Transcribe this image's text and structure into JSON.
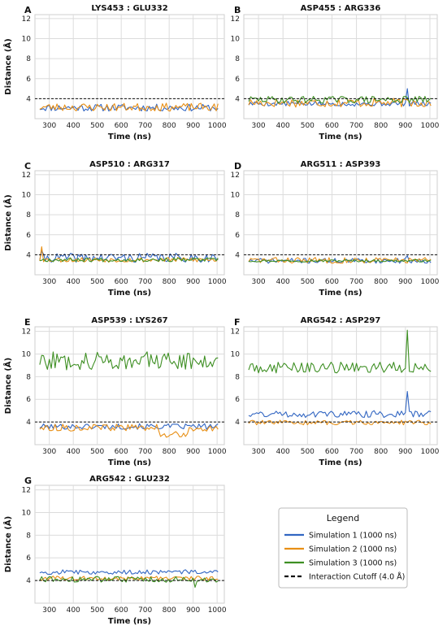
{
  "colors": {
    "sim1": "#3266c2",
    "sim2": "#e88f15",
    "sim3": "#3e8f23",
    "cutoff": "#111111"
  },
  "legend": {
    "title": "Legend",
    "items": [
      {
        "label": "Simulation 1 (1000 ns)",
        "color": "#3266c2",
        "style": "solid"
      },
      {
        "label": "Simulation 2 (1000 ns)",
        "color": "#e88f15",
        "style": "solid"
      },
      {
        "label": "Simulation 3 (1000 ns)",
        "color": "#3e8f23",
        "style": "solid"
      },
      {
        "label": "Interaction Cutoff (4.0 Å)",
        "color": "#111111",
        "style": "dashed"
      }
    ]
  },
  "chart_data": [
    {
      "panel": "A",
      "title": "LYS453 : GLU332",
      "type": "line",
      "xlabel": "Time (ns)",
      "ylabel": "Distance (Å)",
      "xlim": [
        240,
        1030
      ],
      "ylim": [
        2,
        12.4
      ],
      "xticks": [
        300,
        400,
        500,
        600,
        700,
        800,
        900,
        1000
      ],
      "yticks": [
        4,
        6,
        8,
        10,
        12
      ],
      "cutoff": 4.0,
      "grid": true,
      "series": [
        {
          "name": "Simulation 1 (1000 ns)",
          "base": 3.1,
          "amp": 0.35,
          "seed": 11,
          "spikes": []
        },
        {
          "name": "Simulation 2 (1000 ns)",
          "base": 3.15,
          "amp": 0.4,
          "seed": 23,
          "spikes": []
        },
        {
          "name": "Simulation 3 (1000 ns)",
          "base": 3.2,
          "amp": 0.15,
          "seed": 37,
          "spikes": [],
          "hidden": true
        }
      ]
    },
    {
      "panel": "B",
      "title": "ASP455 : ARG336",
      "type": "line",
      "xlabel": "Time (ns)",
      "ylabel": "",
      "xlim": [
        240,
        1030
      ],
      "ylim": [
        2,
        12.4
      ],
      "xticks": [
        300,
        400,
        500,
        600,
        700,
        800,
        900,
        1000
      ],
      "yticks": [
        4,
        6,
        8,
        10,
        12
      ],
      "cutoff": 4.0,
      "grid": true,
      "series": [
        {
          "name": "Simulation 1 (1000 ns)",
          "base": 3.5,
          "amp": 0.25,
          "seed": 5,
          "spikes": [
            [
              905,
              5.0
            ]
          ]
        },
        {
          "name": "Simulation 2 (1000 ns)",
          "base": 3.6,
          "amp": 0.45,
          "seed": 17,
          "spikes": [
            [
              960,
              4.6
            ]
          ]
        },
        {
          "name": "Simulation 3 (1000 ns)",
          "base": 3.9,
          "amp": 0.35,
          "seed": 29,
          "spikes": []
        }
      ]
    },
    {
      "panel": "C",
      "title": "ASP510 : ARG317",
      "type": "line",
      "xlabel": "Time (ns)",
      "ylabel": "Distance (Å)",
      "xlim": [
        240,
        1030
      ],
      "ylim": [
        2,
        12.4
      ],
      "xticks": [
        300,
        400,
        500,
        600,
        700,
        800,
        900,
        1000
      ],
      "yticks": [
        4,
        6,
        8,
        10,
        12
      ],
      "cutoff": 4.0,
      "grid": true,
      "series": [
        {
          "name": "Simulation 1 (1000 ns)",
          "base": 3.7,
          "amp": 0.45,
          "seed": 41,
          "spikes": [
            [
              270,
              4.4
            ]
          ]
        },
        {
          "name": "Simulation 2 (1000 ns)",
          "base": 3.5,
          "amp": 0.25,
          "seed": 53,
          "spikes": [
            [
              265,
              4.8
            ]
          ]
        },
        {
          "name": "Simulation 3 (1000 ns)",
          "base": 3.5,
          "amp": 0.2,
          "seed": 67,
          "spikes": []
        }
      ]
    },
    {
      "panel": "D",
      "title": "ARG511 : ASP393",
      "type": "line",
      "xlabel": "Time (ns)",
      "ylabel": "",
      "xlim": [
        240,
        1030
      ],
      "ylim": [
        2,
        12.4
      ],
      "xticks": [
        300,
        400,
        500,
        600,
        700,
        800,
        900,
        1000
      ],
      "yticks": [
        4,
        6,
        8,
        10,
        12
      ],
      "cutoff": 4.0,
      "grid": true,
      "series": [
        {
          "name": "Simulation 1 (1000 ns)",
          "base": 3.4,
          "amp": 0.25,
          "seed": 71,
          "spikes": [
            [
              280,
              4.0
            ],
            [
              905,
              3.9
            ]
          ]
        },
        {
          "name": "Simulation 2 (1000 ns)",
          "base": 3.45,
          "amp": 0.3,
          "seed": 83,
          "spikes": []
        },
        {
          "name": "Simulation 3 (1000 ns)",
          "base": 3.4,
          "amp": 0.12,
          "seed": 97,
          "spikes": []
        }
      ]
    },
    {
      "panel": "E",
      "title": "ASP539 : LYS267",
      "type": "line",
      "xlabel": "Time (ns)",
      "ylabel": "Distance (Å)",
      "xlim": [
        240,
        1030
      ],
      "ylim": [
        2,
        12.4
      ],
      "xticks": [
        300,
        400,
        500,
        600,
        700,
        800,
        900,
        1000
      ],
      "yticks": [
        4,
        6,
        8,
        10,
        12
      ],
      "cutoff": 4.0,
      "grid": true,
      "series": [
        {
          "name": "Simulation 1 (1000 ns)",
          "base": 3.6,
          "amp": 0.25,
          "seed": 101,
          "spikes": []
        },
        {
          "name": "Simulation 2 (1000 ns)",
          "base": 3.5,
          "amp": 0.3,
          "seed": 113,
          "spikes": [],
          "dip": [
            [
              760,
              880,
              2.9
            ]
          ]
        },
        {
          "name": "Simulation 3 (1000 ns)",
          "base": 9.4,
          "amp": 0.8,
          "seed": 127,
          "spikes": []
        }
      ]
    },
    {
      "panel": "F",
      "title": "ARG542 : ASP297",
      "type": "line",
      "xlabel": "Time (ns)",
      "ylabel": "",
      "xlim": [
        240,
        1030
      ],
      "ylim": [
        2,
        12.4
      ],
      "xticks": [
        300,
        400,
        500,
        600,
        700,
        800,
        900,
        1000
      ],
      "yticks": [
        4,
        6,
        8,
        10,
        12
      ],
      "cutoff": 4.0,
      "grid": true,
      "series": [
        {
          "name": "Simulation 1 (1000 ns)",
          "base": 4.7,
          "amp": 0.3,
          "seed": 131,
          "spikes": [
            [
              360,
              8.1
            ],
            [
              905,
              6.7
            ]
          ]
        },
        {
          "name": "Simulation 2 (1000 ns)",
          "base": 3.95,
          "amp": 0.2,
          "seed": 139,
          "spikes": []
        },
        {
          "name": "Simulation 3 (1000 ns)",
          "base": 8.8,
          "amp": 0.5,
          "seed": 149,
          "spikes": [
            [
              908,
              12.1
            ]
          ]
        }
      ]
    },
    {
      "panel": "G",
      "title": "ARG542 : GLU232",
      "type": "line",
      "xlabel": "Time (ns)",
      "ylabel": "Distance (Å)",
      "xlim": [
        240,
        1030
      ],
      "ylim": [
        2,
        12.4
      ],
      "xticks": [
        300,
        400,
        500,
        600,
        700,
        800,
        900,
        1000
      ],
      "yticks": [
        4,
        6,
        8,
        10,
        12
      ],
      "cutoff": 4.0,
      "grid": true,
      "series": [
        {
          "name": "Simulation 1 (1000 ns)",
          "base": 4.75,
          "amp": 0.2,
          "seed": 157,
          "spikes": []
        },
        {
          "name": "Simulation 2 (1000 ns)",
          "base": 4.2,
          "amp": 0.2,
          "seed": 163,
          "spikes": []
        },
        {
          "name": "Simulation 3 (1000 ns)",
          "base": 4.1,
          "amp": 0.25,
          "seed": 173,
          "spikes": [
            [
              905,
              3.4
            ]
          ]
        }
      ]
    }
  ]
}
